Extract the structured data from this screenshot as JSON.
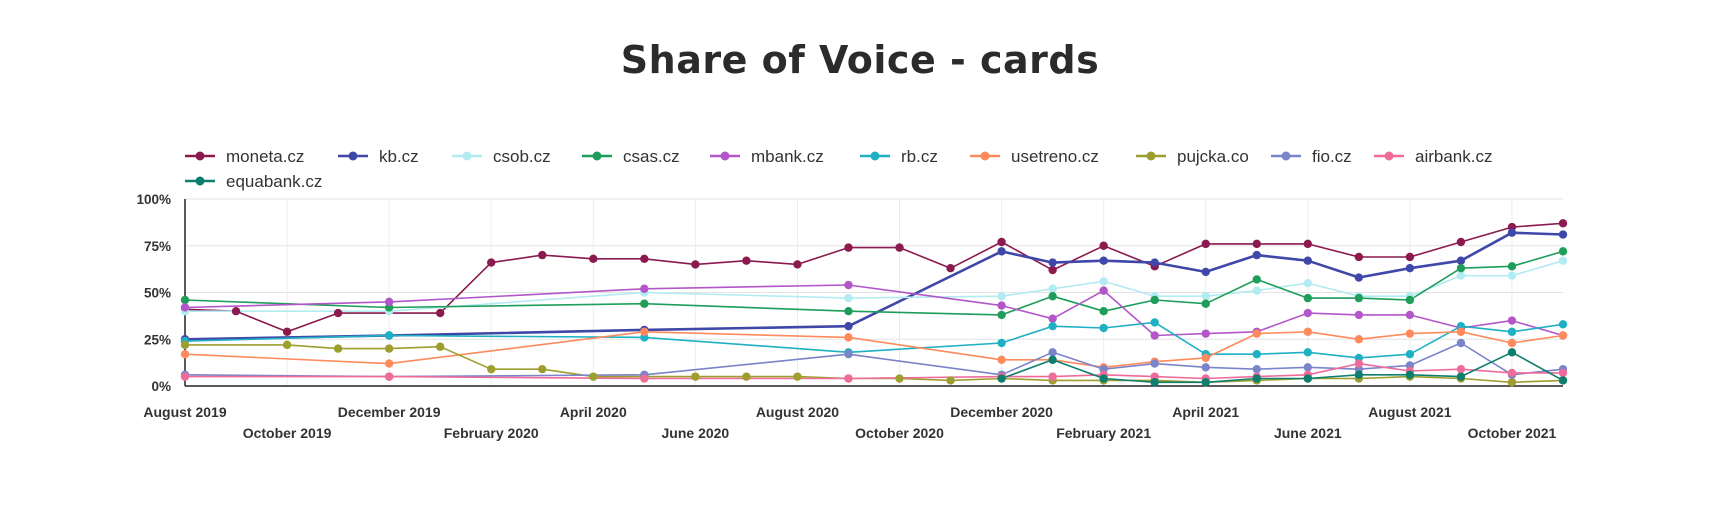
{
  "title": "Share of Voice - cards",
  "chart_data": {
    "type": "line",
    "title": "Share of Voice - cards",
    "ylim": [
      0,
      100
    ],
    "y_ticks": [
      "0%",
      "25%",
      "50%",
      "75%",
      "100%"
    ],
    "grid": true,
    "legend_position": "top",
    "x_ticks": [
      "August 2019",
      "October 2019",
      "December 2019",
      "February 2020",
      "April 2020",
      "June 2020",
      "August 2020",
      "October 2020",
      "December 2020",
      "February 2021",
      "April 2021",
      "June 2021",
      "August 2021",
      "October 2021"
    ],
    "series": [
      {
        "name": "moneta.cz",
        "color": "#8b1a4f",
        "values": [
          [
            0,
            41
          ],
          [
            0.5,
            40
          ],
          [
            1,
            29
          ],
          [
            1.5,
            39
          ],
          [
            2.5,
            39
          ],
          [
            3,
            66
          ],
          [
            3.5,
            70
          ],
          [
            4,
            68
          ],
          [
            4.5,
            68
          ],
          [
            5,
            65
          ],
          [
            5.5,
            67
          ],
          [
            6,
            65
          ],
          [
            6.5,
            74
          ],
          [
            7,
            74
          ],
          [
            7.5,
            63
          ],
          [
            8,
            77
          ],
          [
            8.5,
            62
          ],
          [
            9,
            75
          ],
          [
            9.5,
            64
          ],
          [
            10,
            76
          ],
          [
            10.5,
            76
          ],
          [
            11,
            76
          ],
          [
            11.5,
            69
          ],
          [
            12,
            69
          ],
          [
            12.5,
            77
          ],
          [
            13,
            85
          ],
          [
            13.5,
            87
          ]
        ]
      },
      {
        "name": "kb.cz",
        "color": "#3f48a8",
        "values": [
          [
            0,
            25
          ],
          [
            2,
            27
          ],
          [
            4.5,
            30
          ],
          [
            6.5,
            32
          ],
          [
            8,
            72
          ],
          [
            8.5,
            66
          ],
          [
            9,
            67
          ],
          [
            9.5,
            66
          ],
          [
            10,
            61
          ],
          [
            10.5,
            70
          ],
          [
            11,
            67
          ],
          [
            11.5,
            58
          ],
          [
            12,
            63
          ],
          [
            12.5,
            67
          ],
          [
            13,
            82
          ],
          [
            13.5,
            81
          ]
        ]
      },
      {
        "name": "csob.cz",
        "color": "#b3ebf2",
        "values": [
          [
            0,
            40
          ],
          [
            2,
            40
          ],
          [
            4.5,
            50
          ],
          [
            6.5,
            47
          ],
          [
            8,
            48
          ],
          [
            8.5,
            52
          ],
          [
            9,
            56
          ],
          [
            9.5,
            48
          ],
          [
            10,
            48
          ],
          [
            10.5,
            51
          ],
          [
            11,
            55
          ],
          [
            11.5,
            48
          ],
          [
            12,
            48
          ],
          [
            12.5,
            59
          ],
          [
            13,
            59
          ],
          [
            13.5,
            67
          ]
        ]
      },
      {
        "name": "csas.cz",
        "color": "#1e9e5a",
        "values": [
          [
            0,
            46
          ],
          [
            2,
            42
          ],
          [
            4.5,
            44
          ],
          [
            6.5,
            40
          ],
          [
            8,
            38
          ],
          [
            8.5,
            48
          ],
          [
            9,
            40
          ],
          [
            9.5,
            46
          ],
          [
            10,
            44
          ],
          [
            10.5,
            57
          ],
          [
            11,
            47
          ],
          [
            11.5,
            47
          ],
          [
            12,
            46
          ],
          [
            12.5,
            63
          ],
          [
            13,
            64
          ],
          [
            13.5,
            72
          ]
        ]
      },
      {
        "name": "mbank.cz",
        "color": "#b256c9",
        "values": [
          [
            0,
            42
          ],
          [
            2,
            45
          ],
          [
            4.5,
            52
          ],
          [
            6.5,
            54
          ],
          [
            8,
            43
          ],
          [
            8.5,
            36
          ],
          [
            9,
            51
          ],
          [
            9.5,
            27
          ],
          [
            10,
            28
          ],
          [
            10.5,
            29
          ],
          [
            11,
            39
          ],
          [
            11.5,
            38
          ],
          [
            12,
            38
          ],
          [
            12.5,
            31
          ],
          [
            13,
            35
          ],
          [
            13.5,
            27
          ]
        ]
      },
      {
        "name": "rb.cz",
        "color": "#1fb0c4",
        "values": [
          [
            0,
            24
          ],
          [
            2,
            27
          ],
          [
            4.5,
            26
          ],
          [
            6.5,
            18
          ],
          [
            8,
            23
          ],
          [
            8.5,
            32
          ],
          [
            9,
            31
          ],
          [
            9.5,
            34
          ],
          [
            10,
            17
          ],
          [
            10.5,
            17
          ],
          [
            11,
            18
          ],
          [
            11.5,
            15
          ],
          [
            12,
            17
          ],
          [
            12.5,
            32
          ],
          [
            13,
            29
          ],
          [
            13.5,
            33
          ]
        ]
      },
      {
        "name": "usetreno.cz",
        "color": "#ff8a5c",
        "values": [
          [
            0,
            17
          ],
          [
            2,
            12
          ],
          [
            4.5,
            29
          ],
          [
            6.5,
            26
          ],
          [
            8,
            14
          ],
          [
            8.5,
            14
          ],
          [
            9,
            10
          ],
          [
            9.5,
            13
          ],
          [
            10,
            15
          ],
          [
            10.5,
            28
          ],
          [
            11,
            29
          ],
          [
            11.5,
            25
          ],
          [
            12,
            28
          ],
          [
            12.5,
            29
          ],
          [
            13,
            23
          ],
          [
            13.5,
            27
          ]
        ]
      },
      {
        "name": "pujcka.co",
        "color": "#9e9e2e",
        "values": [
          [
            0,
            22
          ],
          [
            1,
            22
          ],
          [
            1.5,
            20
          ],
          [
            2,
            20
          ],
          [
            2.5,
            21
          ],
          [
            3,
            9
          ],
          [
            3.5,
            9
          ],
          [
            4,
            5
          ],
          [
            4.5,
            5
          ],
          [
            5,
            5
          ],
          [
            5.5,
            5
          ],
          [
            6,
            5
          ],
          [
            6.5,
            4
          ],
          [
            7,
            4
          ],
          [
            7.5,
            3
          ],
          [
            8,
            4
          ],
          [
            8.5,
            3
          ],
          [
            9,
            3
          ],
          [
            9.5,
            3
          ],
          [
            10,
            2
          ],
          [
            10.5,
            3
          ],
          [
            11,
            4
          ],
          [
            11.5,
            4
          ],
          [
            12,
            5
          ],
          [
            12.5,
            4
          ],
          [
            13,
            2
          ],
          [
            13.5,
            3
          ]
        ]
      },
      {
        "name": "fio.cz",
        "color": "#7a84c9",
        "values": [
          [
            0,
            6
          ],
          [
            2,
            5
          ],
          [
            4.5,
            6
          ],
          [
            6.5,
            17
          ],
          [
            8,
            6
          ],
          [
            8.5,
            18
          ],
          [
            9,
            9
          ],
          [
            9.5,
            12
          ],
          [
            10,
            10
          ],
          [
            10.5,
            9
          ],
          [
            11,
            10
          ],
          [
            11.5,
            9
          ],
          [
            12,
            11
          ],
          [
            12.5,
            23
          ],
          [
            13,
            6
          ],
          [
            13.5,
            9
          ]
        ]
      },
      {
        "name": "airbank.cz",
        "color": "#ee6b9a",
        "values": [
          [
            0,
            5
          ],
          [
            2,
            5
          ],
          [
            4.5,
            4
          ],
          [
            6.5,
            4
          ],
          [
            8,
            5
          ],
          [
            8.5,
            5
          ],
          [
            9,
            6
          ],
          [
            9.5,
            5
          ],
          [
            10,
            4
          ],
          [
            10.5,
            5
          ],
          [
            11,
            6
          ],
          [
            11.5,
            12
          ],
          [
            12,
            8
          ],
          [
            12.5,
            9
          ],
          [
            13,
            7
          ],
          [
            13.5,
            7
          ]
        ]
      },
      {
        "name": "equabank.cz",
        "color": "#0e7f6e",
        "values": [
          [
            8,
            4
          ],
          [
            8.5,
            14
          ],
          [
            9,
            4
          ],
          [
            9.5,
            2
          ],
          [
            10,
            2
          ],
          [
            10.5,
            4
          ],
          [
            11,
            4
          ],
          [
            11.5,
            6
          ],
          [
            12,
            6
          ],
          [
            12.5,
            5
          ],
          [
            13,
            18
          ],
          [
            13.5,
            3
          ]
        ]
      }
    ]
  }
}
